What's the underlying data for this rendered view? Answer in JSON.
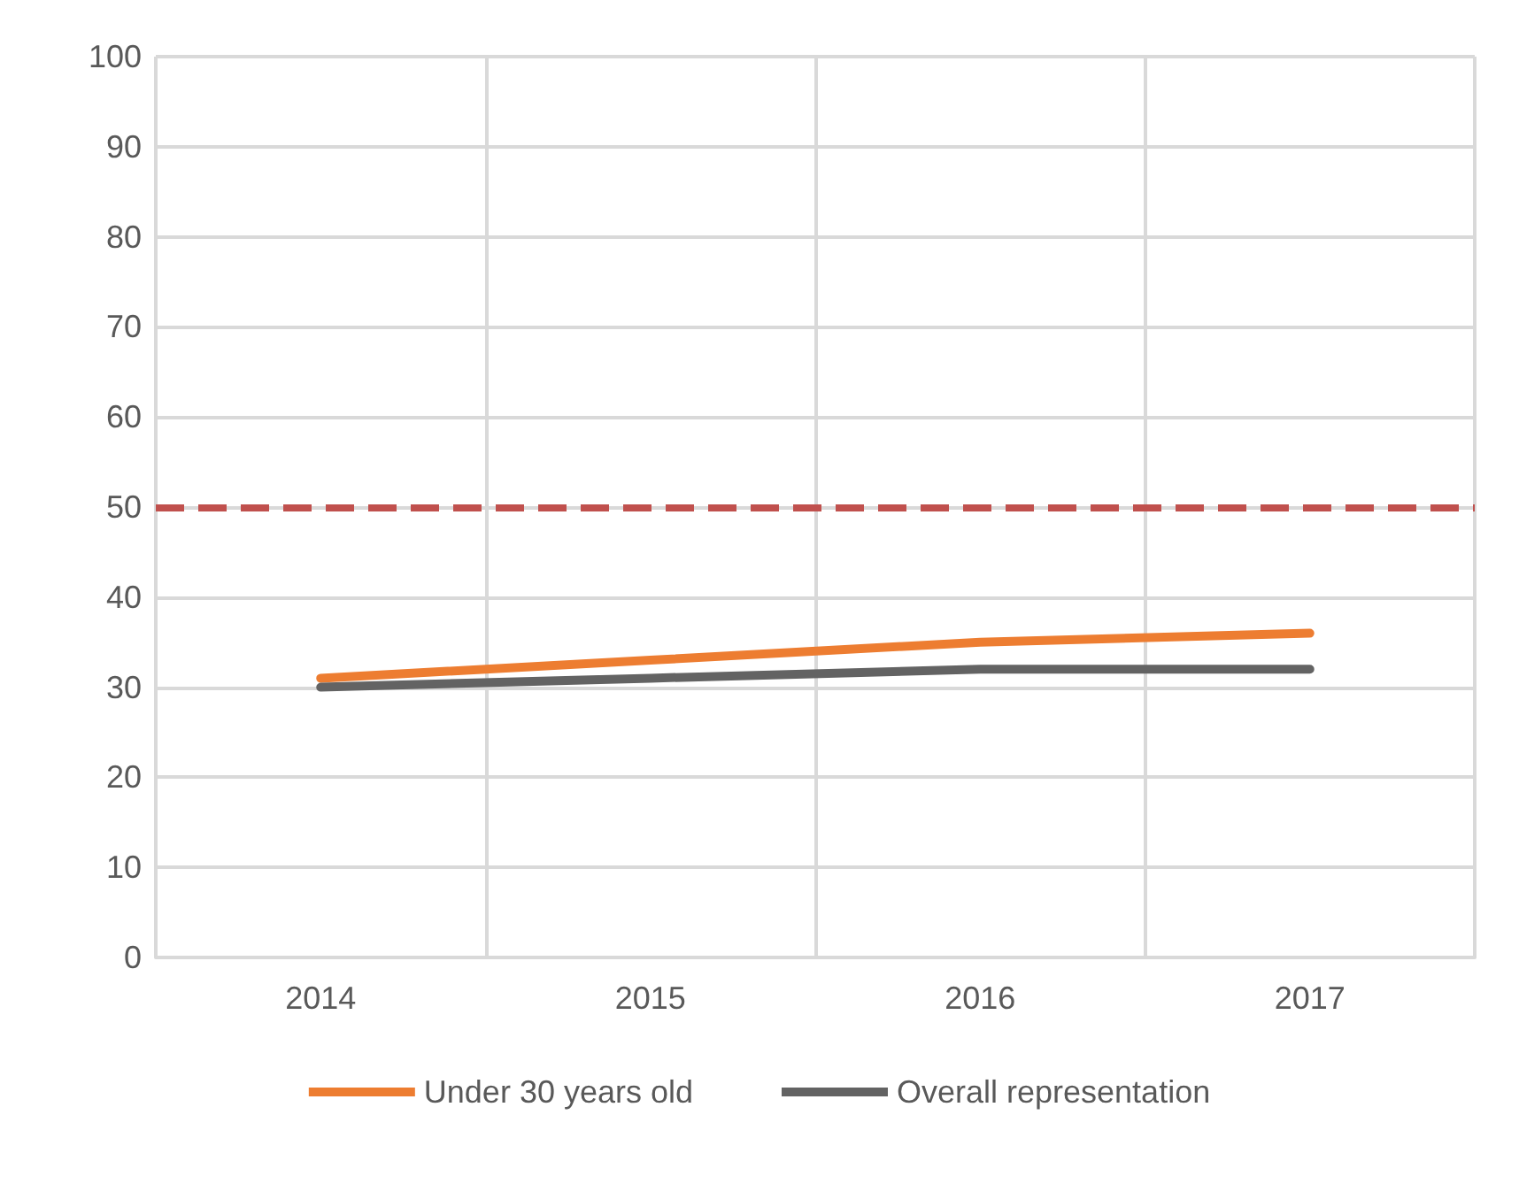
{
  "chart_data": {
    "type": "line",
    "categories": [
      "2014",
      "2015",
      "2016",
      "2017"
    ],
    "series": [
      {
        "name": "Under 30 years old",
        "color": "#ed7d31",
        "values": [
          31,
          33,
          35,
          36
        ]
      },
      {
        "name": "Overall representation",
        "color": "#636363",
        "values": [
          30,
          31,
          32,
          32
        ]
      }
    ],
    "ylim": [
      0,
      100
    ],
    "yticks": [
      0,
      10,
      20,
      30,
      40,
      50,
      60,
      70,
      80,
      90,
      100
    ],
    "grid": true,
    "legend": "bottom",
    "marker": "none",
    "line_style": "solid",
    "ref_lines": [
      {
        "axis": "y",
        "value": 50,
        "label": null,
        "color": "#c0504d",
        "line_style": "dashed"
      }
    ]
  }
}
